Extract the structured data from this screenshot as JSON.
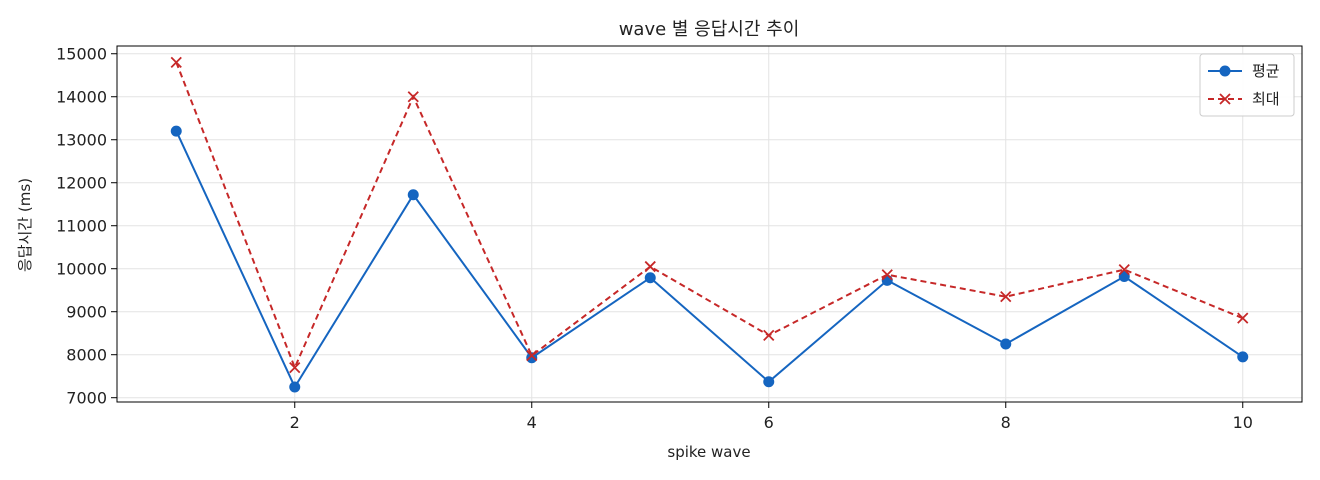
{
  "chart_data": {
    "type": "line",
    "title": "wave 별 응답시간 추이",
    "xlabel": "spike wave",
    "ylabel": "응답시간 (ms)",
    "x": [
      1,
      2,
      3,
      4,
      5,
      6,
      7,
      8,
      9,
      10
    ],
    "xlim": [
      0.5,
      10.5
    ],
    "ylim": [
      6900,
      15180
    ],
    "xticks": [
      2,
      4,
      6,
      8,
      10
    ],
    "yticks": [
      7000,
      8000,
      9000,
      10000,
      11000,
      12000,
      13000,
      14000,
      15000
    ],
    "grid": true,
    "legend_position": "top-right",
    "series": [
      {
        "name": "평균",
        "color": "#1565c0",
        "line_style": "solid",
        "marker": "circle",
        "values": [
          13200,
          7250,
          11720,
          7930,
          9790,
          7370,
          9730,
          8250,
          9820,
          7950
        ]
      },
      {
        "name": "최대",
        "color": "#c62828",
        "line_style": "dashed",
        "marker": "x",
        "values": [
          14800,
          7700,
          14000,
          7980,
          10050,
          8450,
          9860,
          9350,
          9980,
          8850
        ]
      }
    ]
  }
}
